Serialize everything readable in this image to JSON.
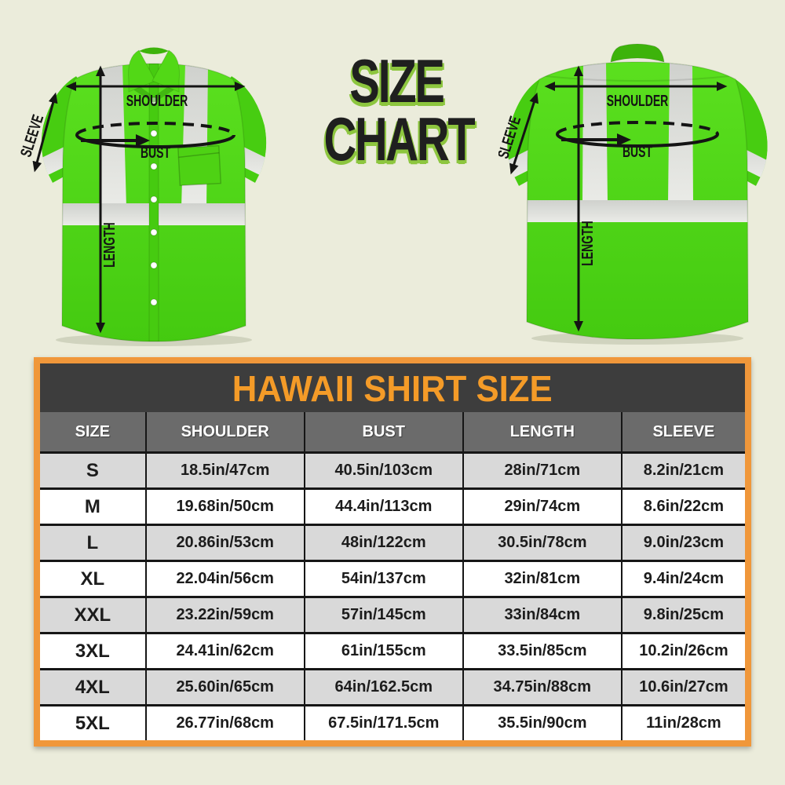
{
  "page": {
    "background": "#ebecdb"
  },
  "hero": {
    "title_line1": "SIZE",
    "title_line2": "CHART",
    "measure_labels": {
      "shoulder": "SHOULDER",
      "bust": "BUST",
      "length": "LENGTH",
      "sleeve": "SLEEVE"
    }
  },
  "colors": {
    "accent_orange": "#f0973a",
    "title_text_orange": "#f49b28",
    "title_bar_dark": "#3d3d3d",
    "header_gray": "#6b6b6b",
    "row_gray": "#d9d9d9",
    "shirt_green": "#4bd013",
    "stripe_silver": "#dcdeda",
    "title_shadow_green": "#8dc63f"
  },
  "chart_data": {
    "type": "table",
    "title": "HAWAII SHIRT SIZE",
    "columns": [
      "SIZE",
      "SHOULDER",
      "BUST",
      "LENGTH",
      "SLEEVE"
    ],
    "rows": [
      [
        "S",
        "18.5in/47cm",
        "40.5in/103cm",
        "28in/71cm",
        "8.2in/21cm"
      ],
      [
        "M",
        "19.68in/50cm",
        "44.4in/113cm",
        "29in/74cm",
        "8.6in/22cm"
      ],
      [
        "L",
        "20.86in/53cm",
        "48in/122cm",
        "30.5in/78cm",
        "9.0in/23cm"
      ],
      [
        "XL",
        "22.04in/56cm",
        "54in/137cm",
        "32in/81cm",
        "9.4in/24cm"
      ],
      [
        "XXL",
        "23.22in/59cm",
        "57in/145cm",
        "33in/84cm",
        "9.8in/25cm"
      ],
      [
        "3XL",
        "24.41in/62cm",
        "61in/155cm",
        "33.5in/85cm",
        "10.2in/26cm"
      ],
      [
        "4XL",
        "25.60in/65cm",
        "64in/162.5cm",
        "34.75in/88cm",
        "10.6in/27cm"
      ],
      [
        "5XL",
        "26.77in/68cm",
        "67.5in/171.5cm",
        "35.5in/90cm",
        "11in/28cm"
      ]
    ]
  }
}
